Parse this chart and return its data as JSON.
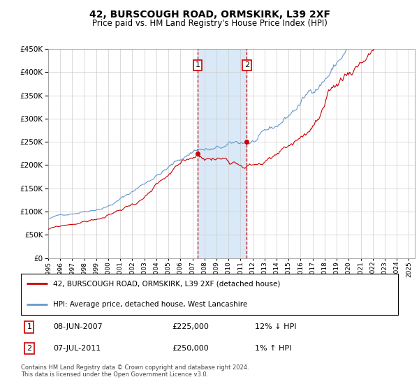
{
  "title": "42, BURSCOUGH ROAD, ORMSKIRK, L39 2XF",
  "subtitle": "Price paid vs. HM Land Registry's House Price Index (HPI)",
  "ylim": [
    0,
    450000
  ],
  "yticks": [
    0,
    50000,
    100000,
    150000,
    200000,
    250000,
    300000,
    350000,
    400000,
    450000
  ],
  "xlim_start": 1995.0,
  "xlim_end": 2025.5,
  "red_line_label": "42, BURSCOUGH ROAD, ORMSKIRK, L39 2XF (detached house)",
  "blue_line_label": "HPI: Average price, detached house, West Lancashire",
  "sale1_date_label": "08-JUN-2007",
  "sale1_price": 225000,
  "sale1_pct": "12% ↓ HPI",
  "sale1_x": 2007.44,
  "sale2_date_label": "07-JUL-2011",
  "sale2_price": 250000,
  "sale2_pct": "1% ↑ HPI",
  "sale2_x": 2011.52,
  "footnote": "Contains HM Land Registry data © Crown copyright and database right 2024.\nThis data is licensed under the Open Government Licence v3.0.",
  "red_color": "#cc0000",
  "blue_color": "#6699cc",
  "shade_color": "#d0e4f7",
  "grid_color": "#cccccc",
  "background_color": "#ffffff",
  "title_fontsize": 10,
  "subtitle_fontsize": 8.5
}
